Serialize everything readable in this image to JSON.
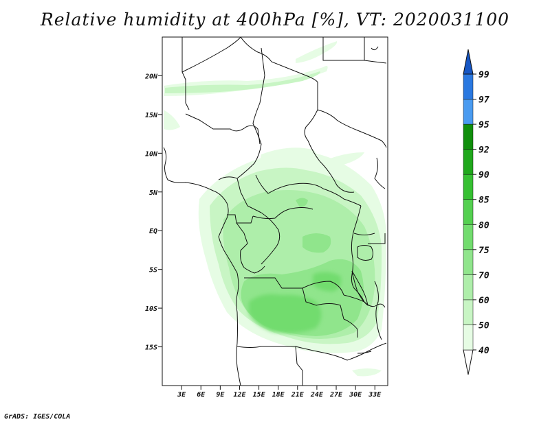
{
  "title": "Relative humidity at 400hPa [%], VT: 2020031100",
  "credit": "GrADS: IGES/COLA",
  "map": {
    "lon_range": [
      0,
      35
    ],
    "lat_range": [
      -20,
      25
    ],
    "lat_ticks": [
      {
        "value": 20,
        "label": "20N"
      },
      {
        "value": 15,
        "label": "15N"
      },
      {
        "value": 10,
        "label": "10N"
      },
      {
        "value": 5,
        "label": "5N"
      },
      {
        "value": 0,
        "label": "EQ"
      },
      {
        "value": -5,
        "label": "5S"
      },
      {
        "value": -10,
        "label": "10S"
      },
      {
        "value": -15,
        "label": "15S"
      }
    ],
    "lon_ticks": [
      {
        "value": 3,
        "label": "3E"
      },
      {
        "value": 6,
        "label": "6E"
      },
      {
        "value": 9,
        "label": "9E"
      },
      {
        "value": 12,
        "label": "12E"
      },
      {
        "value": 15,
        "label": "15E"
      },
      {
        "value": 18,
        "label": "18E"
      },
      {
        "value": 21,
        "label": "21E"
      },
      {
        "value": 24,
        "label": "24E"
      },
      {
        "value": 27,
        "label": "27E"
      },
      {
        "value": 30,
        "label": "30E"
      },
      {
        "value": 33,
        "label": "33E"
      }
    ]
  },
  "colorbar": {
    "levels": [
      "40",
      "50",
      "60",
      "70",
      "75",
      "80",
      "85",
      "90",
      "92",
      "95",
      "97",
      "99"
    ],
    "colors": [
      "#ffffff",
      "#e6fce4",
      "#c8f5c4",
      "#aeeeaa",
      "#90e58c",
      "#72dc6e",
      "#54d050",
      "#36c032",
      "#20a81c",
      "#108f0c",
      "#4a9bf0",
      "#2a78e0",
      "#1656c4"
    ]
  }
}
